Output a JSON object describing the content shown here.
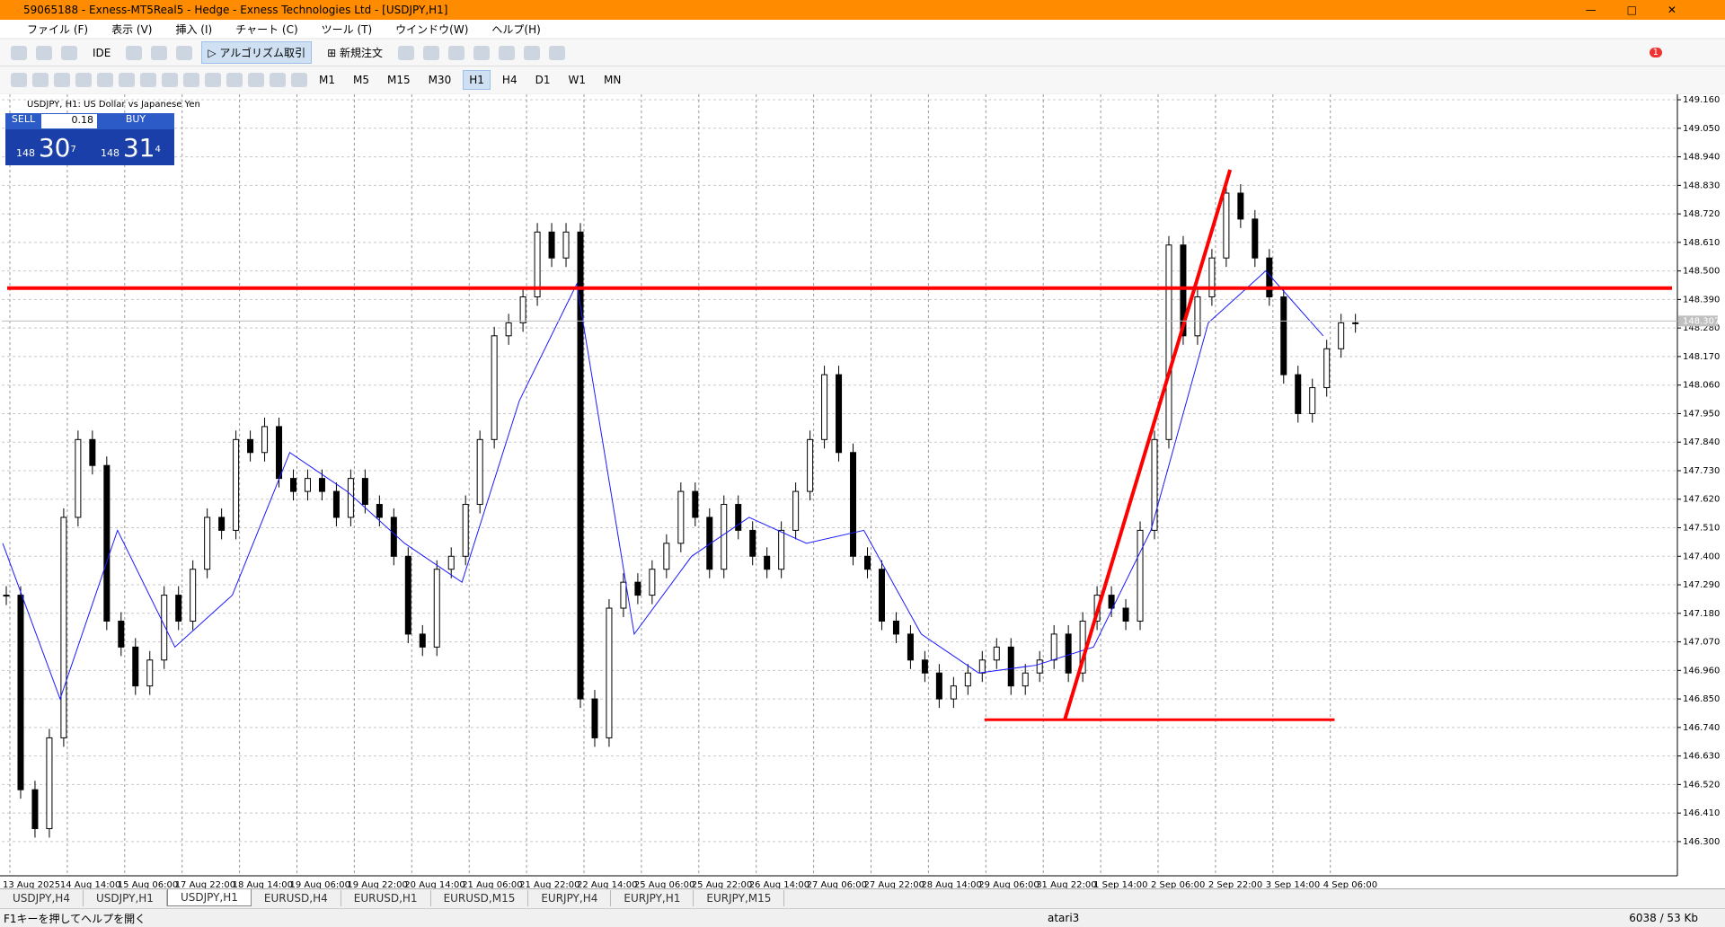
{
  "window": {
    "title": "59065188 - Exness-MT5Real5 - Hedge - Exness Technologies Ltd - [USDJPY,H1]"
  },
  "menu": [
    "ファイル (F)",
    "表示 (V)",
    "挿入 (I)",
    "チャート (C)",
    "ツール (T)",
    "ウインドウ(W)",
    "ヘルプ(H)"
  ],
  "toolbar": {
    "ide": "IDE",
    "algo": "アルゴリズム取引",
    "order": "新規注文",
    "periods": [
      "M1",
      "M5",
      "M15",
      "M30",
      "H1",
      "H4",
      "D1",
      "W1",
      "MN"
    ],
    "active_period": "H1",
    "notifications": "1"
  },
  "trade_panel": {
    "sell": "SELL",
    "buy": "BUY",
    "volume": "0.18",
    "bid_big": "148",
    "bid_main": "30",
    "bid_small": "7",
    "ask_big": "148",
    "ask_main": "31",
    "ask_small": "4"
  },
  "chart_data": {
    "type": "candlestick",
    "title": "USDJPY, H1:  US Dollar vs Japanese Yen",
    "categories": [
      "13 Aug 2025",
      "14 Aug 14:00",
      "15 Aug 06:00",
      "17 Aug 22:00",
      "18 Aug 14:00",
      "19 Aug 06:00",
      "19 Aug 22:00",
      "20 Aug 14:00",
      "21 Aug 06:00",
      "21 Aug 22:00",
      "22 Aug 14:00",
      "25 Aug 06:00",
      "25 Aug 22:00",
      "26 Aug 14:00",
      "27 Aug 06:00",
      "27 Aug 22:00",
      "28 Aug 14:00",
      "29 Aug 06:00",
      "31 Aug 22:00",
      "1 Sep 14:00",
      "2 Sep 06:00",
      "2 Sep 22:00",
      "3 Sep 14:00",
      "4 Sep 06:00"
    ],
    "close": [
      147.25,
      146.5,
      146.35,
      146.7,
      147.55,
      147.85,
      147.75,
      147.15,
      147.05,
      146.9,
      147.0,
      147.25,
      147.15,
      147.35,
      147.55,
      147.5,
      147.85,
      147.8,
      147.9,
      147.7,
      147.65,
      147.7,
      147.65,
      147.55,
      147.7,
      147.6,
      147.55,
      147.4,
      147.1,
      147.05,
      147.35,
      147.4,
      147.6,
      147.85,
      148.25,
      148.3,
      148.4,
      148.65,
      148.55,
      148.65,
      146.85,
      146.7,
      147.2,
      147.3,
      147.25,
      147.35,
      147.45,
      147.65,
      147.55,
      147.35,
      147.6,
      147.5,
      147.4,
      147.35,
      147.5,
      147.65,
      147.85,
      148.1,
      147.8,
      147.4,
      147.35,
      147.15,
      147.1,
      147.0,
      146.95,
      146.85,
      146.9,
      146.95,
      147.0,
      147.05,
      146.9,
      146.95,
      147.0,
      147.1,
      146.95,
      147.15,
      147.25,
      147.2,
      147.15,
      147.5,
      147.85,
      148.6,
      148.25,
      148.4,
      148.55,
      148.8,
      148.7,
      148.55,
      148.4,
      148.1,
      147.95,
      148.05,
      148.2,
      148.3,
      148.3
    ],
    "ma": {
      "color": "#1a1aff",
      "values": [
        147.45,
        146.85,
        147.5,
        147.05,
        147.25,
        147.8,
        147.65,
        147.45,
        147.3,
        148.0,
        148.45,
        147.1,
        147.4,
        147.55,
        147.45,
        147.5,
        147.1,
        146.95,
        146.98,
        147.05,
        147.5,
        148.3,
        148.5,
        148.25
      ]
    },
    "levels": {
      "color": "#ff0000",
      "resistance": 148.434,
      "support": 146.77,
      "trend_high": 148.89
    },
    "current_price": {
      "value": 148.307,
      "label": "148.307"
    },
    "ylim": [
      146.182,
      149.174
    ],
    "yticks": [
      {
        "value": 149.16,
        "label": "149.160"
      },
      {
        "value": 149.05,
        "label": "149.050"
      },
      {
        "value": 148.94,
        "label": "148.940"
      },
      {
        "value": 148.83,
        "label": "148.830"
      },
      {
        "value": 148.72,
        "label": "148.720"
      },
      {
        "value": 148.61,
        "label": "148.610"
      },
      {
        "value": 148.5,
        "label": "148.500"
      },
      {
        "value": 148.39,
        "label": "148.390"
      },
      {
        "value": 148.28,
        "label": "148.280"
      },
      {
        "value": 148.17,
        "label": "148.170"
      },
      {
        "value": 148.06,
        "label": "148.060"
      },
      {
        "value": 147.95,
        "label": "147.950"
      },
      {
        "value": 147.84,
        "label": "147.840"
      },
      {
        "value": 147.73,
        "label": "147.730"
      },
      {
        "value": 147.62,
        "label": "147.620"
      },
      {
        "value": 147.51,
        "label": "147.510"
      },
      {
        "value": 147.4,
        "label": "147.400"
      },
      {
        "value": 147.29,
        "label": "147.290"
      },
      {
        "value": 147.18,
        "label": "147.180"
      },
      {
        "value": 147.07,
        "label": "147.070"
      },
      {
        "value": 146.96,
        "label": "146.960"
      },
      {
        "value": 146.85,
        "label": "146.850"
      },
      {
        "value": 146.74,
        "label": "146.740"
      },
      {
        "value": 146.63,
        "label": "146.630"
      },
      {
        "value": 146.52,
        "label": "146.520"
      },
      {
        "value": 146.41,
        "label": "146.410"
      },
      {
        "value": 146.3,
        "label": "146.300"
      }
    ],
    "grid": true
  },
  "tabs": [
    "USDJPY,H4",
    "USDJPY,H1",
    "USDJPY,H1",
    "EURUSD,H4",
    "EURUSD,H1",
    "EURUSD,M15",
    "EURJPY,H4",
    "EURJPY,H1",
    "EURJPY,M15"
  ],
  "active_tab": 2,
  "status": {
    "help": "F1キーを押してヘルプを開く",
    "profile": "atari3",
    "traffic": "6038 / 53 Kb"
  }
}
